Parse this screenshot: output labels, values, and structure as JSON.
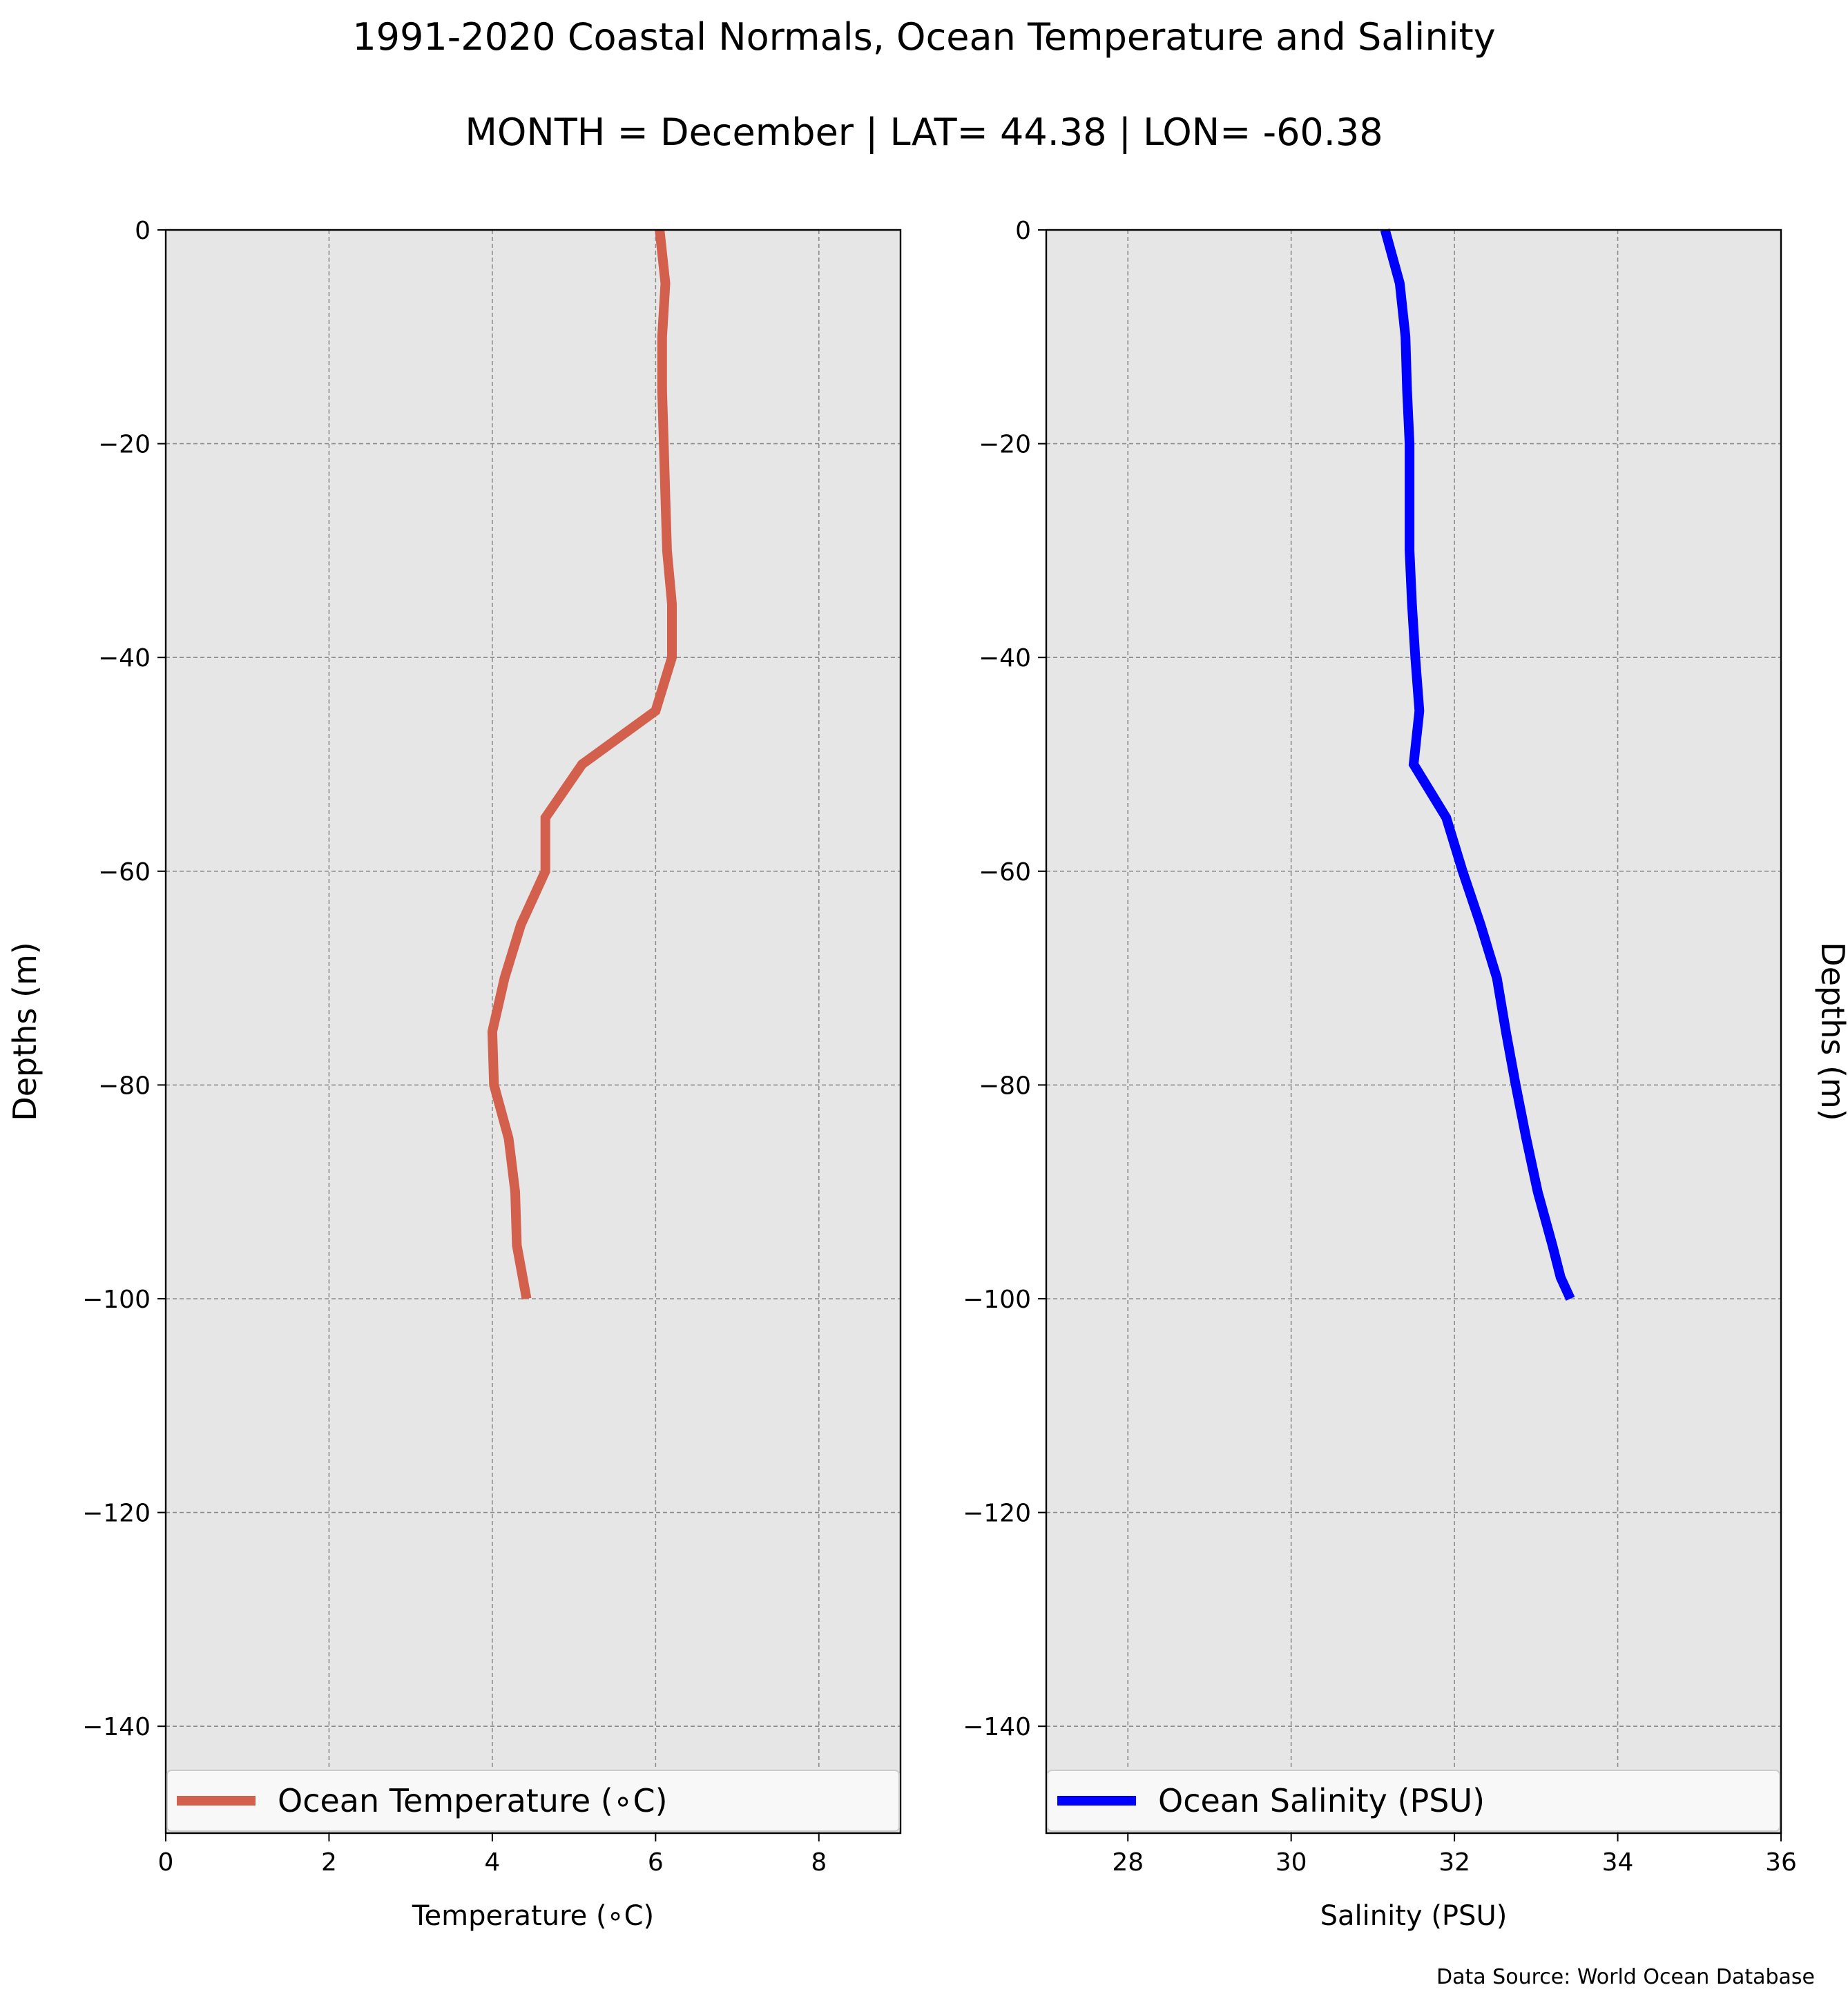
{
  "figure": {
    "title": "1991-2020 Coastal Normals, Ocean Temperature and Salinity",
    "subtitle": "MONTH = December | LAT= 44.38 | LON= -60.38",
    "source": "Data Source: World Ocean Database",
    "background": "#e6e6e6",
    "grid_color": "#8c8c8c"
  },
  "chart_data": [
    {
      "type": "line",
      "xlabel": "Temperature (∘C)",
      "ylabel": "Depths (m)",
      "xlim": [
        0,
        9
      ],
      "ylim": [
        -150,
        0
      ],
      "xticks": [
        0,
        2,
        4,
        6,
        8
      ],
      "xtick_labels": [
        "0",
        "2",
        "4",
        "6",
        "8"
      ],
      "yticks": [
        0,
        -20,
        -40,
        -60,
        -80,
        -100,
        -120,
        -140
      ],
      "ytick_labels": [
        "0",
        "−20",
        "−40",
        "−60",
        "−80",
        "−100",
        "−120",
        "−140"
      ],
      "grid": true,
      "legend": "lower center",
      "series": [
        {
          "name": "Ocean Temperature (∘C)",
          "color": "#d35f4d",
          "x": [
            6.05,
            6.12,
            6.08,
            6.08,
            6.1,
            6.12,
            6.14,
            6.2,
            6.2,
            6.0,
            5.1,
            4.65,
            4.65,
            4.35,
            4.15,
            4.0,
            4.02,
            4.2,
            4.28,
            4.3,
            4.42
          ],
          "y": [
            0,
            -5,
            -10,
            -15,
            -20,
            -25,
            -30,
            -35,
            -40,
            -45,
            -50,
            -55,
            -60,
            -65,
            -70,
            -75,
            -80,
            -85,
            -90,
            -95,
            -100
          ]
        }
      ]
    },
    {
      "type": "line",
      "xlabel": "Salinity (PSU)",
      "ylabel": "Depths (m)",
      "xlim": [
        27,
        36
      ],
      "ylim": [
        -150,
        0
      ],
      "xticks": [
        28,
        30,
        32,
        34,
        36
      ],
      "xtick_labels": [
        "28",
        "30",
        "32",
        "34",
        "36"
      ],
      "yticks": [
        0,
        -20,
        -40,
        -60,
        -80,
        -100,
        -120,
        -140
      ],
      "ytick_labels": [
        "0",
        "−20",
        "−40",
        "−60",
        "−80",
        "−100",
        "−120",
        "−140"
      ],
      "grid": true,
      "legend": "lower center",
      "series": [
        {
          "name": "Ocean Salinity (PSU)",
          "color": "#0000ff",
          "x": [
            31.15,
            31.33,
            31.4,
            31.42,
            31.45,
            31.45,
            31.45,
            31.48,
            31.52,
            31.57,
            31.5,
            31.9,
            32.1,
            32.32,
            32.52,
            32.63,
            32.75,
            32.88,
            33.02,
            33.2,
            33.3,
            33.42
          ],
          "y": [
            0,
            -5,
            -10,
            -15,
            -20,
            -25,
            -30,
            -35,
            -40,
            -45,
            -50,
            -55,
            -60,
            -65,
            -70,
            -75,
            -80,
            -85,
            -90,
            -95,
            -98,
            -100
          ]
        }
      ]
    }
  ]
}
